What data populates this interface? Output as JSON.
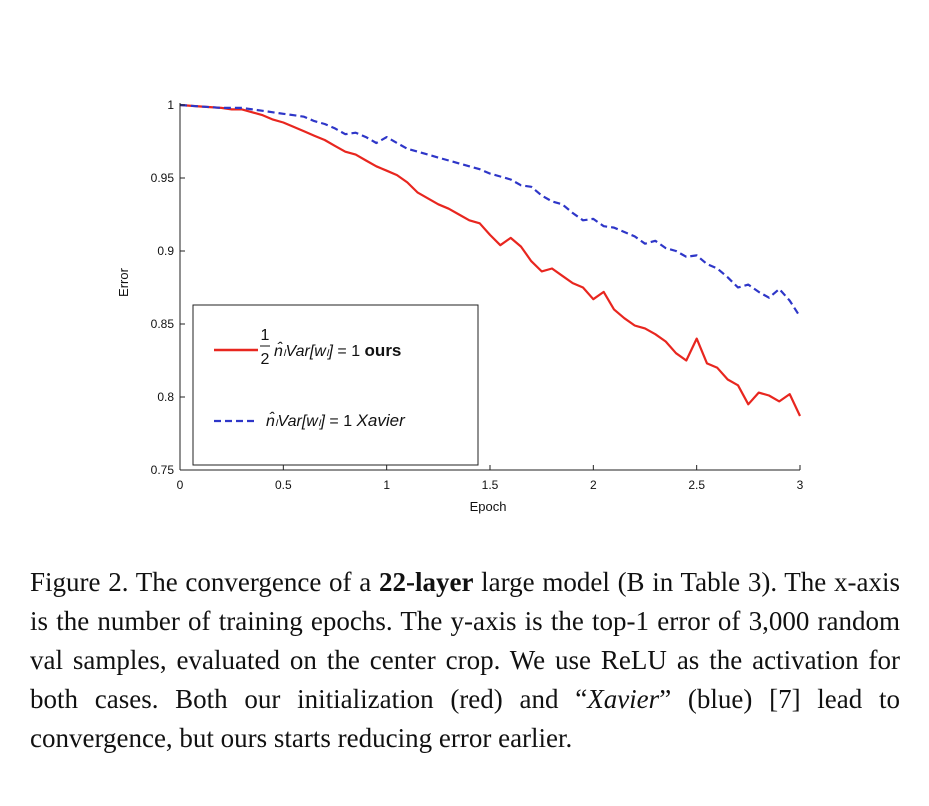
{
  "chart_data": {
    "type": "line",
    "xlabel": "Epoch",
    "ylabel": "Error",
    "xlim": [
      0,
      3
    ],
    "ylim": [
      0.75,
      1
    ],
    "xticks": [
      "0",
      "0.5",
      "1",
      "1.5",
      "2",
      "2.5",
      "3"
    ],
    "yticks": [
      "1",
      "0.95",
      "0.9",
      "0.85",
      "0.8",
      "0.75"
    ],
    "legend_position": "lower-left",
    "series": [
      {
        "name": "ours",
        "legend_label": "½ n̂ₗVar[wₗ] = 1  ours",
        "color": "#e8261f",
        "dash": "solid",
        "x": [
          0,
          0.1,
          0.2,
          0.25,
          0.3,
          0.35,
          0.4,
          0.45,
          0.5,
          0.55,
          0.6,
          0.65,
          0.7,
          0.75,
          0.8,
          0.85,
          0.9,
          0.95,
          1.0,
          1.05,
          1.1,
          1.15,
          1.2,
          1.25,
          1.3,
          1.35,
          1.4,
          1.45,
          1.5,
          1.55,
          1.6,
          1.65,
          1.7,
          1.75,
          1.8,
          1.85,
          1.9,
          1.95,
          2.0,
          2.05,
          2.1,
          2.15,
          2.2,
          2.25,
          2.3,
          2.35,
          2.4,
          2.45,
          2.5,
          2.55,
          2.6,
          2.65,
          2.7,
          2.75,
          2.8,
          2.85,
          2.9,
          2.95,
          3.0
        ],
        "y": [
          1.0,
          0.999,
          0.998,
          0.997,
          0.997,
          0.995,
          0.993,
          0.99,
          0.988,
          0.985,
          0.982,
          0.979,
          0.976,
          0.972,
          0.968,
          0.966,
          0.962,
          0.958,
          0.955,
          0.952,
          0.947,
          0.94,
          0.936,
          0.932,
          0.929,
          0.925,
          0.921,
          0.919,
          0.911,
          0.904,
          0.909,
          0.903,
          0.893,
          0.886,
          0.888,
          0.883,
          0.878,
          0.875,
          0.867,
          0.872,
          0.86,
          0.854,
          0.849,
          0.847,
          0.843,
          0.838,
          0.83,
          0.825,
          0.84,
          0.823,
          0.82,
          0.812,
          0.808,
          0.795,
          0.803,
          0.801,
          0.797,
          0.802,
          0.787
        ]
      },
      {
        "name": "Xavier",
        "legend_label": "n̂ₗVar[wₗ] = 1  Xavier",
        "color": "#2e36c8",
        "dash": "dashed",
        "x": [
          0,
          0.1,
          0.2,
          0.25,
          0.3,
          0.35,
          0.4,
          0.45,
          0.5,
          0.55,
          0.6,
          0.65,
          0.7,
          0.75,
          0.8,
          0.85,
          0.9,
          0.95,
          1.0,
          1.05,
          1.1,
          1.15,
          1.2,
          1.25,
          1.3,
          1.35,
          1.4,
          1.45,
          1.5,
          1.55,
          1.6,
          1.65,
          1.7,
          1.75,
          1.8,
          1.85,
          1.9,
          1.95,
          2.0,
          2.05,
          2.1,
          2.15,
          2.2,
          2.25,
          2.3,
          2.35,
          2.4,
          2.45,
          2.5,
          2.55,
          2.6,
          2.65,
          2.7,
          2.75,
          2.8,
          2.85,
          2.9,
          2.95,
          3.0
        ],
        "y": [
          1.0,
          0.999,
          0.998,
          0.998,
          0.998,
          0.997,
          0.996,
          0.995,
          0.994,
          0.993,
          0.992,
          0.989,
          0.987,
          0.984,
          0.98,
          0.981,
          0.978,
          0.974,
          0.978,
          0.974,
          0.97,
          0.968,
          0.966,
          0.964,
          0.962,
          0.96,
          0.958,
          0.956,
          0.953,
          0.951,
          0.949,
          0.945,
          0.944,
          0.938,
          0.934,
          0.932,
          0.926,
          0.921,
          0.922,
          0.917,
          0.916,
          0.913,
          0.91,
          0.905,
          0.907,
          0.902,
          0.9,
          0.896,
          0.897,
          0.891,
          0.888,
          0.882,
          0.875,
          0.877,
          0.872,
          0.868,
          0.874,
          0.866,
          0.855
        ]
      }
    ]
  },
  "caption": {
    "prefix": "Figure 2. The convergence of a ",
    "bold": "22-layer",
    "middle": " large model (B in Table 3). The x-axis is the number of training epochs. The y-axis is the top-1 error of 3,000 random val samples, evaluated on the center crop. We use ReLU as the activation for both cases. Both our initialization (red) and “",
    "italic": "Xavier",
    "suffix": "” (blue) [7] lead to convergence, but ours starts reducing error earlier."
  }
}
